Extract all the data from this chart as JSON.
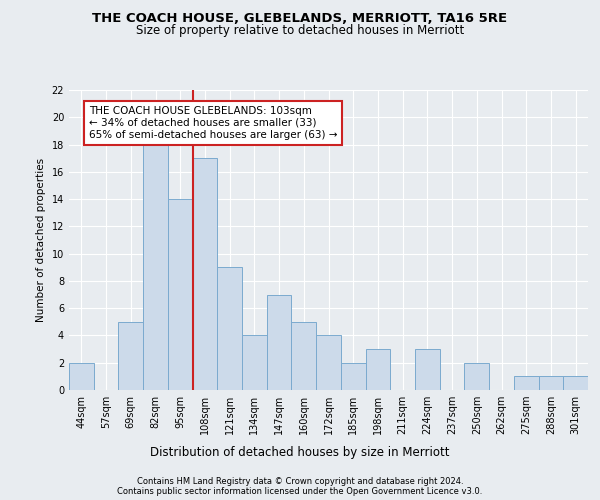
{
  "title1": "THE COACH HOUSE, GLEBELANDS, MERRIOTT, TA16 5RE",
  "title2": "Size of property relative to detached houses in Merriott",
  "xlabel": "Distribution of detached houses by size in Merriott",
  "ylabel": "Number of detached properties",
  "categories": [
    "44sqm",
    "57sqm",
    "69sqm",
    "82sqm",
    "95sqm",
    "108sqm",
    "121sqm",
    "134sqm",
    "147sqm",
    "160sqm",
    "172sqm",
    "185sqm",
    "198sqm",
    "211sqm",
    "224sqm",
    "237sqm",
    "250sqm",
    "262sqm",
    "275sqm",
    "288sqm",
    "301sqm"
  ],
  "values": [
    2,
    0,
    5,
    18,
    14,
    17,
    9,
    4,
    7,
    5,
    4,
    2,
    3,
    0,
    3,
    0,
    2,
    0,
    1,
    1,
    1
  ],
  "bar_color": "#ccdaea",
  "bar_edge_color": "#7baacf",
  "vline_x": 4.5,
  "vline_color": "#cc2222",
  "annotation_text": "THE COACH HOUSE GLEBELANDS: 103sqm\n← 34% of detached houses are smaller (33)\n65% of semi-detached houses are larger (63) →",
  "annotation_box_facecolor": "#ffffff",
  "annotation_box_edgecolor": "#cc2222",
  "ylim": [
    0,
    22
  ],
  "yticks": [
    0,
    2,
    4,
    6,
    8,
    10,
    12,
    14,
    16,
    18,
    20,
    22
  ],
  "footer1": "Contains HM Land Registry data © Crown copyright and database right 2024.",
  "footer2": "Contains public sector information licensed under the Open Government Licence v3.0.",
  "background_color": "#e8ecf0",
  "grid_color": "#ffffff",
  "title1_fontsize": 9.5,
  "title2_fontsize": 8.5,
  "ylabel_fontsize": 7.5,
  "xlabel_fontsize": 8.5,
  "tick_fontsize": 7,
  "footer_fontsize": 6.0,
  "ann_fontsize": 7.5
}
